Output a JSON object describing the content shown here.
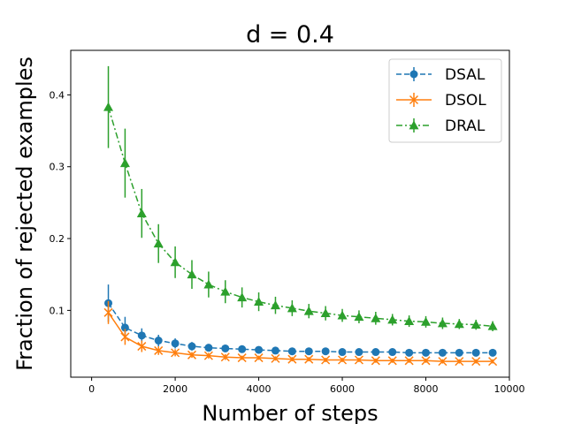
{
  "chart_data": {
    "type": "line",
    "title": "d = 0.4",
    "xlabel": "Number of steps",
    "ylabel": "Fraction of rejected examples",
    "xlim": [
      -500,
      10000
    ],
    "ylim": [
      0.007,
      0.462
    ],
    "xticks": [
      0,
      2000,
      4000,
      6000,
      8000,
      10000
    ],
    "xtick_labels": [
      "0",
      "2000",
      "4000",
      "6000",
      "8000",
      "10000"
    ],
    "yticks": [
      0.1,
      0.2,
      0.3,
      0.4
    ],
    "ytick_labels": [
      "0.1",
      "0.2",
      "0.3",
      "0.4"
    ],
    "grid": false,
    "legend_position": "top-right",
    "x": [
      400,
      800,
      1200,
      1600,
      2000,
      2400,
      2800,
      3200,
      3600,
      4000,
      4400,
      4800,
      5200,
      5600,
      6000,
      6400,
      6800,
      7200,
      7600,
      8000,
      8400,
      8800,
      9200,
      9600
    ],
    "series": [
      {
        "name": "DSAL",
        "color": "#1f77b4",
        "marker": "circle",
        "linestyle": "dashed",
        "values": [
          0.11,
          0.076,
          0.065,
          0.058,
          0.054,
          0.05,
          0.048,
          0.047,
          0.046,
          0.045,
          0.044,
          0.043,
          0.043,
          0.043,
          0.042,
          0.042,
          0.042,
          0.042,
          0.041,
          0.041,
          0.041,
          0.041,
          0.041,
          0.041
        ],
        "errors": [
          0.026,
          0.015,
          0.01,
          0.008,
          0.007,
          0.006,
          0.005,
          0.005,
          0.004,
          0.004,
          0.004,
          0.004,
          0.003,
          0.003,
          0.003,
          0.003,
          0.003,
          0.003,
          0.003,
          0.003,
          0.003,
          0.003,
          0.003,
          0.003
        ]
      },
      {
        "name": "DSOL",
        "color": "#ff7f0e",
        "marker": "x",
        "linestyle": "solid",
        "values": [
          0.097,
          0.063,
          0.05,
          0.044,
          0.041,
          0.038,
          0.037,
          0.035,
          0.034,
          0.034,
          0.033,
          0.032,
          0.032,
          0.031,
          0.031,
          0.031,
          0.03,
          0.03,
          0.03,
          0.03,
          0.029,
          0.029,
          0.029,
          0.029
        ],
        "errors": [
          0.016,
          0.011,
          0.008,
          0.006,
          0.005,
          0.004,
          0.004,
          0.004,
          0.003,
          0.003,
          0.003,
          0.003,
          0.003,
          0.003,
          0.003,
          0.003,
          0.003,
          0.003,
          0.003,
          0.003,
          0.003,
          0.003,
          0.003,
          0.003
        ]
      },
      {
        "name": "DRAL",
        "color": "#2ca02c",
        "marker": "triangle",
        "linestyle": "dashdot",
        "values": [
          0.383,
          0.305,
          0.235,
          0.193,
          0.167,
          0.15,
          0.136,
          0.126,
          0.118,
          0.112,
          0.107,
          0.103,
          0.099,
          0.096,
          0.093,
          0.091,
          0.089,
          0.087,
          0.085,
          0.084,
          0.082,
          0.081,
          0.08,
          0.078
        ],
        "errors": [
          0.057,
          0.048,
          0.034,
          0.027,
          0.022,
          0.02,
          0.018,
          0.016,
          0.014,
          0.013,
          0.012,
          0.011,
          0.01,
          0.01,
          0.009,
          0.009,
          0.009,
          0.008,
          0.008,
          0.008,
          0.008,
          0.007,
          0.007,
          0.007
        ]
      }
    ]
  }
}
